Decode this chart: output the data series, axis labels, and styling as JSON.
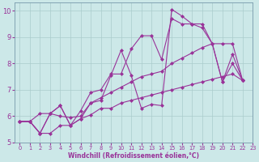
{
  "bg_color": "#cce8e8",
  "grid_color": "#aacccc",
  "line_color": "#993399",
  "xlabel": "Windchill (Refroidissement éolien,°C)",
  "xlim": [
    -0.5,
    23
  ],
  "ylim": [
    5,
    10.3
  ],
  "yticks": [
    5,
    6,
    7,
    8,
    9,
    10
  ],
  "xticks": [
    0,
    1,
    2,
    3,
    4,
    5,
    6,
    7,
    8,
    9,
    10,
    11,
    12,
    13,
    14,
    15,
    16,
    17,
    18,
    19,
    20,
    21,
    22,
    23
  ],
  "series": [
    {
      "x": [
        0,
        1,
        2,
        3,
        4,
        5,
        6,
        7,
        8,
        9,
        10,
        11,
        12,
        13,
        14,
        15,
        16,
        17,
        18,
        19,
        20,
        21,
        22
      ],
      "y": [
        5.8,
        5.8,
        5.35,
        6.1,
        6.4,
        5.65,
        5.9,
        6.5,
        6.6,
        7.55,
        8.5,
        7.55,
        6.3,
        6.45,
        6.4,
        10.05,
        9.8,
        9.5,
        9.35,
        8.75,
        7.3,
        8.35,
        7.35
      ]
    },
    {
      "x": [
        0,
        1,
        2,
        3,
        4,
        5,
        6,
        7,
        8,
        9,
        10,
        11,
        12,
        13,
        14,
        15,
        16,
        17,
        18,
        19,
        20,
        21,
        22
      ],
      "y": [
        5.8,
        5.8,
        5.35,
        6.1,
        6.4,
        5.65,
        6.2,
        6.9,
        7.0,
        7.6,
        7.6,
        8.55,
        9.05,
        9.05,
        8.15,
        9.7,
        9.5,
        9.5,
        9.5,
        8.75,
        8.75,
        8.75,
        7.35
      ]
    },
    {
      "x": [
        0,
        1,
        2,
        3,
        4,
        5,
        6,
        7,
        8,
        9,
        10,
        11,
        12,
        13,
        14,
        15,
        16,
        17,
        18,
        19,
        20,
        21,
        22
      ],
      "y": [
        5.8,
        5.8,
        6.1,
        6.1,
        6.0,
        5.95,
        6.0,
        6.5,
        6.7,
        6.9,
        7.1,
        7.3,
        7.5,
        7.6,
        7.7,
        8.0,
        8.2,
        8.4,
        8.6,
        8.75,
        7.3,
        8.0,
        7.35
      ]
    },
    {
      "x": [
        0,
        1,
        2,
        3,
        4,
        5,
        6,
        7,
        8,
        9,
        10,
        11,
        12,
        13,
        14,
        15,
        16,
        17,
        18,
        19,
        20,
        21,
        22
      ],
      "y": [
        5.8,
        5.8,
        5.35,
        5.35,
        5.65,
        5.65,
        5.9,
        6.05,
        6.3,
        6.3,
        6.5,
        6.6,
        6.7,
        6.8,
        6.9,
        7.0,
        7.1,
        7.2,
        7.3,
        7.4,
        7.5,
        7.6,
        7.35
      ]
    }
  ]
}
